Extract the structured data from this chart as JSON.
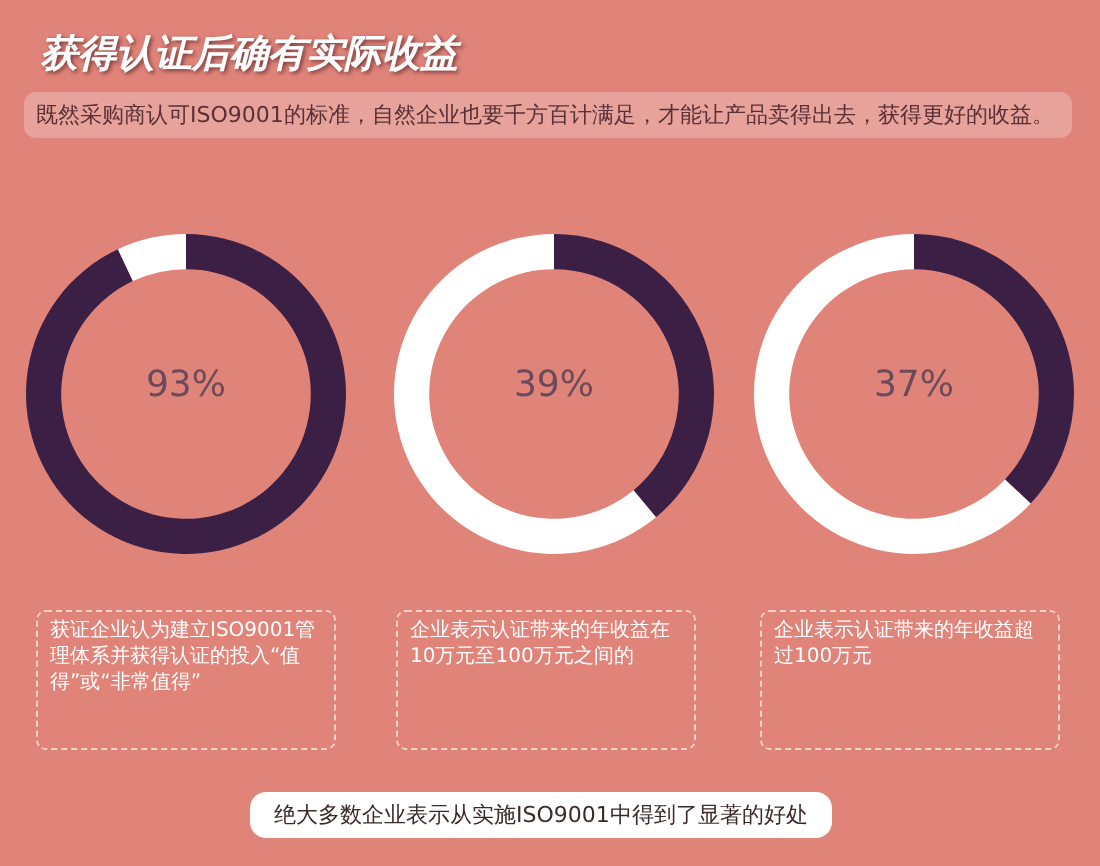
{
  "chart_data": [
    {
      "type": "donut",
      "title": "获得认证后确有实际收益",
      "subtitle": "既然采购商认可ISO9001的标准，自然企业也要千方百计满足，才能让产品卖得出去，获得更好的收益。",
      "categories": [
        null,
        null
      ],
      "values": [
        93,
        7
      ],
      "colors": [
        "#3b1f45",
        "#ffffff"
      ],
      "value_labels": [
        "93%",
        null
      ],
      "annotations": [
        "获证企业认为建立ISO9001管理体系并获得认证的投入“值得”或“非常值得”"
      ]
    },
    {
      "type": "donut",
      "categories": [
        null,
        null
      ],
      "values": [
        39,
        61
      ],
      "colors": [
        "#3b1f45",
        "#ffffff"
      ],
      "value_labels": [
        "39%",
        null
      ],
      "annotations": [
        "企业表示认证带来的年收益在10万元至100万元之间的",
        "绝大多数企业表示从实施ISO9001中得到了显著的好处"
      ]
    },
    {
      "type": "donut",
      "categories": [
        null,
        null
      ],
      "values": [
        37,
        63
      ],
      "colors": [
        "#3b1f45",
        "#ffffff"
      ],
      "value_labels": [
        "37%",
        null
      ],
      "annotations": [
        "企业表示认证带来的年收益超过100万元"
      ]
    }
  ]
}
